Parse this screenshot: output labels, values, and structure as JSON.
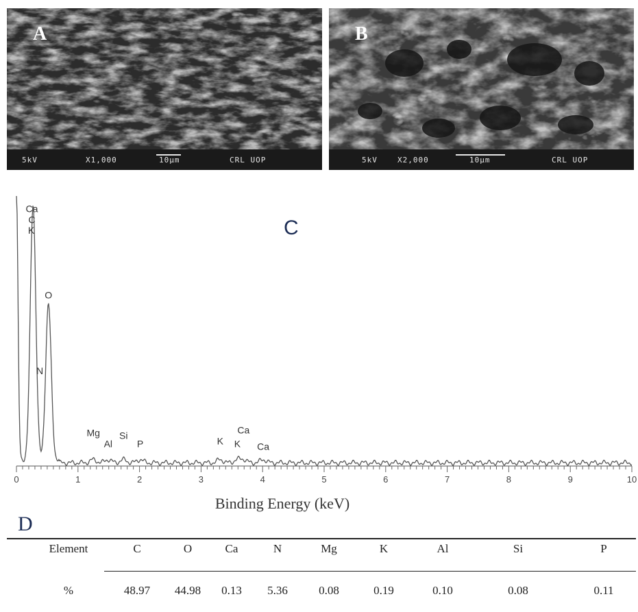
{
  "panels": {
    "A": {
      "letter": "A",
      "kv": "5kV",
      "mag": "X1,000",
      "scale": "10μm",
      "lab": "CRL UOP"
    },
    "B": {
      "letter": "B",
      "kv": "5kV",
      "mag": "X2,000",
      "scale": "10μm",
      "lab": "CRL UOP"
    },
    "C": {
      "letter": "C"
    },
    "D": {
      "letter": "D"
    }
  },
  "chart_data": {
    "type": "line",
    "xlabel": "Binding Energy (keV)",
    "xlim": [
      0,
      10
    ],
    "x_ticks": [
      "0",
      "1",
      "2",
      "3",
      "4",
      "5",
      "6",
      "7",
      "8",
      "9",
      "10"
    ],
    "peaks": [
      {
        "x": 0.0,
        "height": 1.0
      },
      {
        "x": 0.27,
        "height": 0.95
      },
      {
        "x": 0.52,
        "height": 0.58
      }
    ],
    "annotations": [
      {
        "label": "Ca",
        "x": 0.25,
        "y_level": 0.94
      },
      {
        "label": "C",
        "x": 0.25,
        "y_level": 0.9
      },
      {
        "label": "K",
        "x": 0.24,
        "y_level": 0.86
      },
      {
        "label": "O",
        "x": 0.52,
        "y_level": 0.62
      },
      {
        "label": "N",
        "x": 0.38,
        "y_level": 0.34
      },
      {
        "label": "Mg",
        "x": 1.25,
        "y_level": 0.11
      },
      {
        "label": "Al",
        "x": 1.49,
        "y_level": 0.07
      },
      {
        "label": "Si",
        "x": 1.74,
        "y_level": 0.1
      },
      {
        "label": "P",
        "x": 2.01,
        "y_level": 0.07
      },
      {
        "label": "K",
        "x": 3.31,
        "y_level": 0.08
      },
      {
        "label": "Ca",
        "x": 3.69,
        "y_level": 0.12
      },
      {
        "label": "K",
        "x": 3.59,
        "y_level": 0.07
      },
      {
        "label": "Ca",
        "x": 4.01,
        "y_level": 0.06
      }
    ]
  },
  "table": {
    "header_label": "Element",
    "row_label": "%",
    "elements": [
      "C",
      "O",
      "Ca",
      "N",
      "Mg",
      "K",
      "Al",
      "Si",
      "P"
    ],
    "values": [
      "48.97",
      "44.98",
      "0.13",
      "5.36",
      "0.08",
      "0.19",
      "0.10",
      "0.08",
      "0.11"
    ]
  },
  "colors": {
    "panel_letter_c_d": "#1c2d55",
    "spectrum": "#555555"
  }
}
